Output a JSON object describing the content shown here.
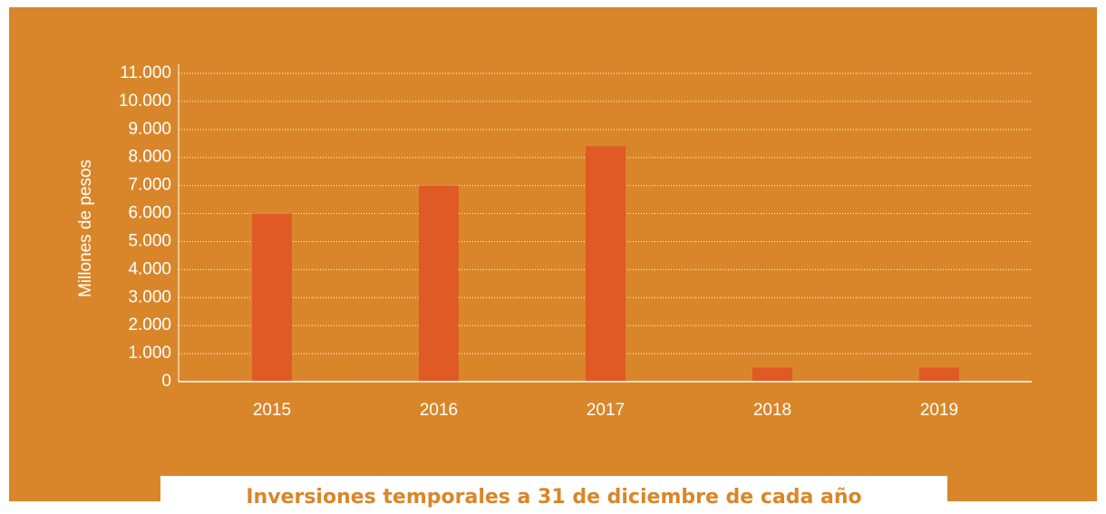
{
  "chart_data": {
    "type": "bar",
    "title": "Inversiones temporales a 31 de diciembre de cada año",
    "y_label": "Millones de pesos",
    "categories": [
      "2015",
      "2016",
      "2017",
      "2018",
      "2019"
    ],
    "values": [
      6000,
      7000,
      8400,
      500,
      500
    ],
    "color": "#e05a25",
    "ylim": [
      0,
      11000
    ],
    "yticks": [
      0,
      {
        "value": 1000,
        "label": "1.000"
      },
      {
        "value": 2000,
        "label": "2.000"
      },
      {
        "value": 3000,
        "label": "3.000"
      },
      {
        "value": 4000,
        "label": "4.000"
      },
      {
        "value": 5000,
        "label": "5.000"
      },
      {
        "value": 6000,
        "label": "6.000"
      },
      {
        "value": 7000,
        "label": "7.000"
      },
      {
        "value": 8000,
        "label": "8.000"
      },
      {
        "value": 9000,
        "label": "9.000"
      },
      {
        "value": 10000,
        "label": "10.000"
      },
      {
        "value": 11000,
        "label": "11.000"
      }
    ],
    "grid": true
  }
}
